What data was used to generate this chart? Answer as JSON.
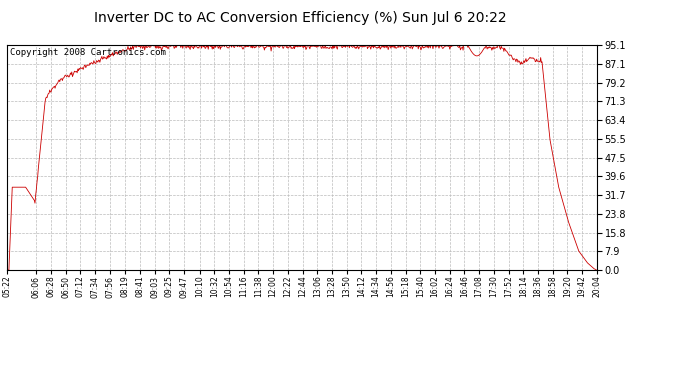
{
  "title": "Inverter DC to AC Conversion Efficiency (%) Sun Jul 6 20:22",
  "copyright": "Copyright 2008 Cartronics.com",
  "yticks": [
    0.0,
    7.9,
    15.8,
    23.8,
    31.7,
    39.6,
    47.5,
    55.5,
    63.4,
    71.3,
    79.2,
    87.1,
    95.1
  ],
  "ymin": 0.0,
  "ymax": 95.1,
  "line_color": "#cc0000",
  "background_color": "#ffffff",
  "grid_color": "#bbbbbb",
  "title_fontsize": 10,
  "copyright_fontsize": 6.5,
  "xtick_labels": [
    "05:22",
    "06:06",
    "06:28",
    "06:50",
    "07:12",
    "07:34",
    "07:56",
    "08:19",
    "08:41",
    "09:03",
    "09:25",
    "09:47",
    "10:10",
    "10:32",
    "10:54",
    "11:16",
    "11:38",
    "12:00",
    "12:22",
    "12:44",
    "13:06",
    "13:28",
    "13:50",
    "14:12",
    "14:34",
    "14:56",
    "15:18",
    "15:40",
    "16:02",
    "16:24",
    "16:46",
    "17:08",
    "17:30",
    "17:52",
    "18:14",
    "18:36",
    "18:58",
    "19:20",
    "19:42",
    "20:04"
  ],
  "x_start_hour": 5,
  "x_start_min": 22,
  "x_end_hour": 20,
  "x_end_min": 4
}
